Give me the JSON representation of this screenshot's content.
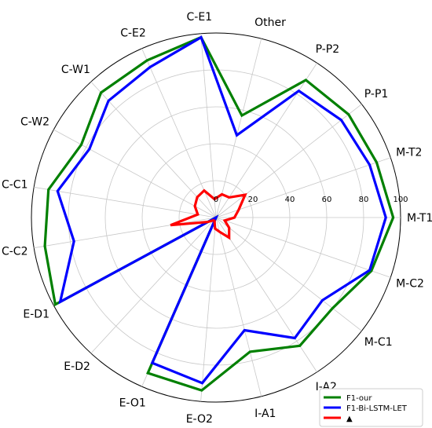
{
  "chart_data": {
    "type": "radar",
    "title": "",
    "categories": [
      "M-T1",
      "M-T2",
      "P-P1",
      "P-P2",
      "Other",
      "C-E1",
      "C-E2",
      "C-W1",
      "C-W2",
      "C-C1",
      "C-C2",
      "E-D1",
      "E-D2",
      "E-O1",
      "E-O2",
      "I-A1",
      "I-A2",
      "M-C1",
      "M-C2"
    ],
    "rlim": [
      0,
      100
    ],
    "r_ticks": [
      0,
      20,
      40,
      60,
      80,
      100
    ],
    "grid": true,
    "legend_position": "bottom-right",
    "series": [
      {
        "name": "F1-our",
        "color": "#008000",
        "values": [
          96,
          92,
          91,
          89,
          57,
          98,
          93,
          92,
          83,
          92,
          94,
          99,
          0,
          92,
          94,
          75,
          83,
          80,
          89
        ]
      },
      {
        "name": "F1-Bi-LSTM-LET",
        "color": "#0000ff",
        "values": [
          92,
          88,
          86,
          82,
          46,
          98,
          89,
          86,
          78,
          87,
          78,
          96,
          0,
          86,
          90,
          63,
          78,
          73,
          88
        ]
      },
      {
        "name": "▲",
        "color": "#ff0000",
        "values": [
          10,
          13,
          20,
          13,
          13,
          10,
          16,
          15,
          13,
          10,
          25,
          5,
          2,
          2,
          6,
          8,
          13,
          9,
          5
        ]
      }
    ]
  }
}
